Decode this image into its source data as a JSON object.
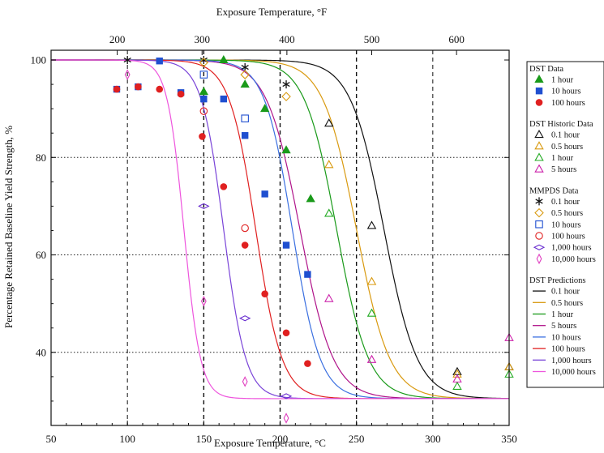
{
  "chart_data": {
    "type": "scatter",
    "xlabel_bottom": "Exposure Temperature, °C",
    "xlabel_top": "Exposure Temperature, °F",
    "ylabel": "Percentage Retained Baseline Yield Strength, %",
    "xlim": [
      50,
      350
    ],
    "ylim": [
      25,
      102
    ],
    "x_ticks": [
      "50",
      "100",
      "150",
      "200",
      "250",
      "300",
      "350"
    ],
    "y_ticks": [
      "40",
      "60",
      "80",
      "100"
    ],
    "top_ticks": [
      "200",
      "300",
      "400",
      "500",
      "600"
    ],
    "top_tick_values_F": [
      200,
      300,
      400,
      500,
      600
    ],
    "grid": {
      "dashed_x": [
        100,
        150,
        200,
        250,
        300
      ],
      "dotted_y": [
        40,
        60,
        80
      ]
    },
    "legend": {
      "position": "right",
      "groups": [
        {
          "title": "DST Data",
          "items": [
            {
              "label": "1 hour",
              "marker": "triangle-filled",
              "color": "#1a9a1a"
            },
            {
              "label": "10 hours",
              "marker": "square-filled",
              "color": "#1f4fd0"
            },
            {
              "label": "100 hours",
              "marker": "circle-filled",
              "color": "#e02020"
            }
          ]
        },
        {
          "title": "DST Historic Data",
          "items": [
            {
              "label": "0.1 hour",
              "marker": "triangle-open",
              "color": "#111111"
            },
            {
              "label": "0.5 hours",
              "marker": "triangle-open",
              "color": "#d99a10"
            },
            {
              "label": "1 hour",
              "marker": "triangle-open",
              "color": "#22aa22"
            },
            {
              "label": "5 hours",
              "marker": "triangle-open",
              "color": "#cc22aa"
            }
          ]
        },
        {
          "title": "MMPDS Data",
          "items": [
            {
              "label": "0.1 hour",
              "marker": "asterisk",
              "color": "#111111"
            },
            {
              "label": "0.5 hours",
              "marker": "diamond-open",
              "color": "#d99a10"
            },
            {
              "label": "10 hours",
              "marker": "square-open",
              "color": "#1f4fd0"
            },
            {
              "label": "100 hours",
              "marker": "circle-open",
              "color": "#e02020"
            },
            {
              "label": "1,000 hours",
              "marker": "diamond-wide-open",
              "color": "#6a2fd0"
            },
            {
              "label": "10,000 hours",
              "marker": "diamond-thin-open",
              "color": "#e040c0"
            }
          ]
        },
        {
          "title": "DST Predictions",
          "items": [
            {
              "label": "0.1 hour",
              "marker": "line",
              "color": "#111111"
            },
            {
              "label": "0.5 hours",
              "marker": "line",
              "color": "#d99a10"
            },
            {
              "label": "1 hour",
              "marker": "line",
              "color": "#1a9a1a"
            },
            {
              "label": "5 hours",
              "marker": "line",
              "color": "#b0148a"
            },
            {
              "label": "10 hours",
              "marker": "line",
              "color": "#3a6fe0"
            },
            {
              "label": "100 hours",
              "marker": "line",
              "color": "#e02020"
            },
            {
              "label": "1,000 hours",
              "marker": "line",
              "color": "#7a44d8"
            },
            {
              "label": "10,000 hours",
              "marker": "line",
              "color": "#ee55dd"
            }
          ]
        }
      ]
    },
    "curves": [
      {
        "color": "#111111",
        "midpoint": 268,
        "width": 24
      },
      {
        "color": "#d99a10",
        "midpoint": 250,
        "width": 24
      },
      {
        "color": "#1a9a1a",
        "midpoint": 237,
        "width": 23
      },
      {
        "color": "#b0148a",
        "midpoint": 213,
        "width": 24
      },
      {
        "color": "#3a6fe0",
        "midpoint": 208,
        "width": 20
      },
      {
        "color": "#e02020",
        "midpoint": 184,
        "width": 19
      },
      {
        "color": "#7a44d8",
        "midpoint": 163,
        "width": 16
      },
      {
        "color": "#ee55dd",
        "midpoint": 137,
        "width": 12
      }
    ],
    "curve_range": {
      "top": 100,
      "bottom": 30.5
    },
    "points": [
      {
        "marker": "triangle-filled",
        "color": "#1a9a1a",
        "data": [
          [
            150,
            93.5
          ],
          [
            163,
            100
          ],
          [
            177,
            95
          ],
          [
            190,
            90
          ],
          [
            204,
            81.5
          ],
          [
            220,
            71.5
          ]
        ]
      },
      {
        "marker": "square-filled",
        "color": "#1f4fd0",
        "data": [
          [
            93,
            94
          ],
          [
            107,
            94.5
          ],
          [
            121,
            99.8
          ],
          [
            135,
            93.3
          ],
          [
            150,
            92
          ],
          [
            163,
            92
          ],
          [
            177,
            84.5
          ],
          [
            190,
            72.5
          ],
          [
            204,
            62
          ],
          [
            218,
            56
          ]
        ]
      },
      {
        "marker": "circle-filled",
        "color": "#e02020",
        "data": [
          [
            93,
            94
          ],
          [
            107,
            94.5
          ],
          [
            121,
            94
          ],
          [
            135,
            93
          ],
          [
            149,
            84.3
          ],
          [
            163,
            74
          ],
          [
            177,
            62
          ],
          [
            190,
            52
          ],
          [
            204,
            44
          ],
          [
            218,
            37.7
          ]
        ]
      },
      {
        "marker": "triangle-open",
        "color": "#111111",
        "data": [
          [
            232,
            87
          ],
          [
            260,
            66
          ],
          [
            316,
            36
          ],
          [
            350,
            37
          ]
        ]
      },
      {
        "marker": "triangle-open",
        "color": "#d99a10",
        "data": [
          [
            232,
            78.5
          ],
          [
            260,
            54.5
          ],
          [
            316,
            35.5
          ],
          [
            350,
            37
          ]
        ]
      },
      {
        "marker": "triangle-open",
        "color": "#22aa22",
        "data": [
          [
            232,
            68.5
          ],
          [
            260,
            48
          ],
          [
            316,
            33
          ],
          [
            350,
            35.5
          ]
        ]
      },
      {
        "marker": "triangle-open",
        "color": "#cc22aa",
        "data": [
          [
            232,
            51
          ],
          [
            260,
            38.5
          ],
          [
            316,
            34.5
          ],
          [
            350,
            43
          ]
        ]
      },
      {
        "marker": "asterisk",
        "color": "#111111",
        "data": [
          [
            100,
            100
          ],
          [
            150,
            100
          ],
          [
            177,
            98.5
          ],
          [
            204,
            95
          ]
        ]
      },
      {
        "marker": "diamond-open",
        "color": "#d99a10",
        "data": [
          [
            150,
            99.5
          ],
          [
            177,
            97
          ],
          [
            204,
            92.5
          ]
        ]
      },
      {
        "marker": "square-open",
        "color": "#1f4fd0",
        "data": [
          [
            150,
            97
          ],
          [
            177,
            88
          ]
        ]
      },
      {
        "marker": "circle-open",
        "color": "#e02020",
        "data": [
          [
            150,
            89.5
          ],
          [
            177,
            65.5
          ]
        ]
      },
      {
        "marker": "diamond-wide-open",
        "color": "#6a2fd0",
        "data": [
          [
            150,
            70
          ],
          [
            177,
            47
          ],
          [
            204,
            31
          ]
        ]
      },
      {
        "marker": "diamond-thin-open",
        "color": "#e040c0",
        "data": [
          [
            100,
            97
          ],
          [
            150,
            50.5
          ],
          [
            177,
            34
          ],
          [
            204,
            26.5
          ]
        ]
      }
    ]
  }
}
